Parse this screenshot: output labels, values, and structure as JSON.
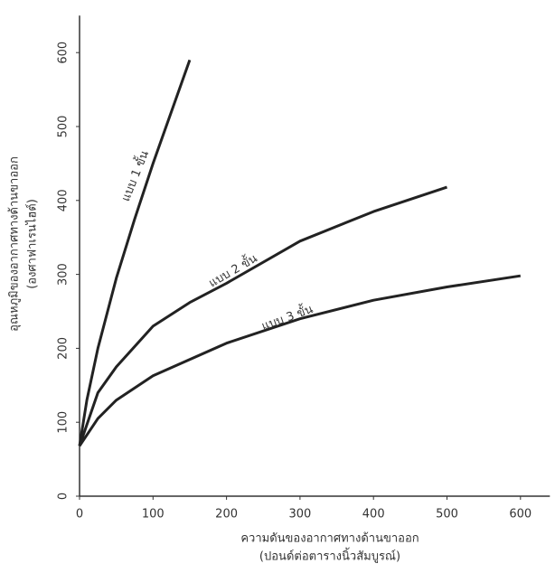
{
  "chart_data": {
    "type": "line",
    "y_label": [
      "อุณหภูมิของอากาศทางด้านขาออก",
      "(องศาฟาเรนไฮต์)"
    ],
    "x_label": [
      "ความดันของอากาศทางด้านขาออก",
      "(ปอนด์ต่อตารางนิ้วสัมบูรณ์)"
    ],
    "xlim": [
      0,
      640
    ],
    "ylim": [
      0,
      650
    ],
    "xticks": [
      0,
      100,
      200,
      300,
      400,
      500,
      600
    ],
    "yticks": [
      0,
      100,
      200,
      300,
      400,
      500,
      600
    ],
    "series": [
      {
        "name": "แบบ 1 ขั้น",
        "color": "#222222",
        "x": [
          0,
          10,
          25,
          50,
          75,
          100,
          125,
          150
        ],
        "values": [
          68,
          130,
          200,
          295,
          375,
          450,
          520,
          590
        ]
      },
      {
        "name": "แบบ 2 ขั้น",
        "color": "#222222",
        "x": [
          0,
          25,
          50,
          100,
          150,
          200,
          300,
          400,
          500
        ],
        "values": [
          68,
          140,
          175,
          230,
          262,
          288,
          345,
          385,
          418
        ]
      },
      {
        "name": "แบบ 3 ขั้น",
        "color": "#222222",
        "x": [
          0,
          25,
          50,
          100,
          200,
          300,
          400,
          500,
          600
        ],
        "values": [
          68,
          105,
          130,
          163,
          207,
          240,
          265,
          283,
          298
        ]
      }
    ]
  }
}
